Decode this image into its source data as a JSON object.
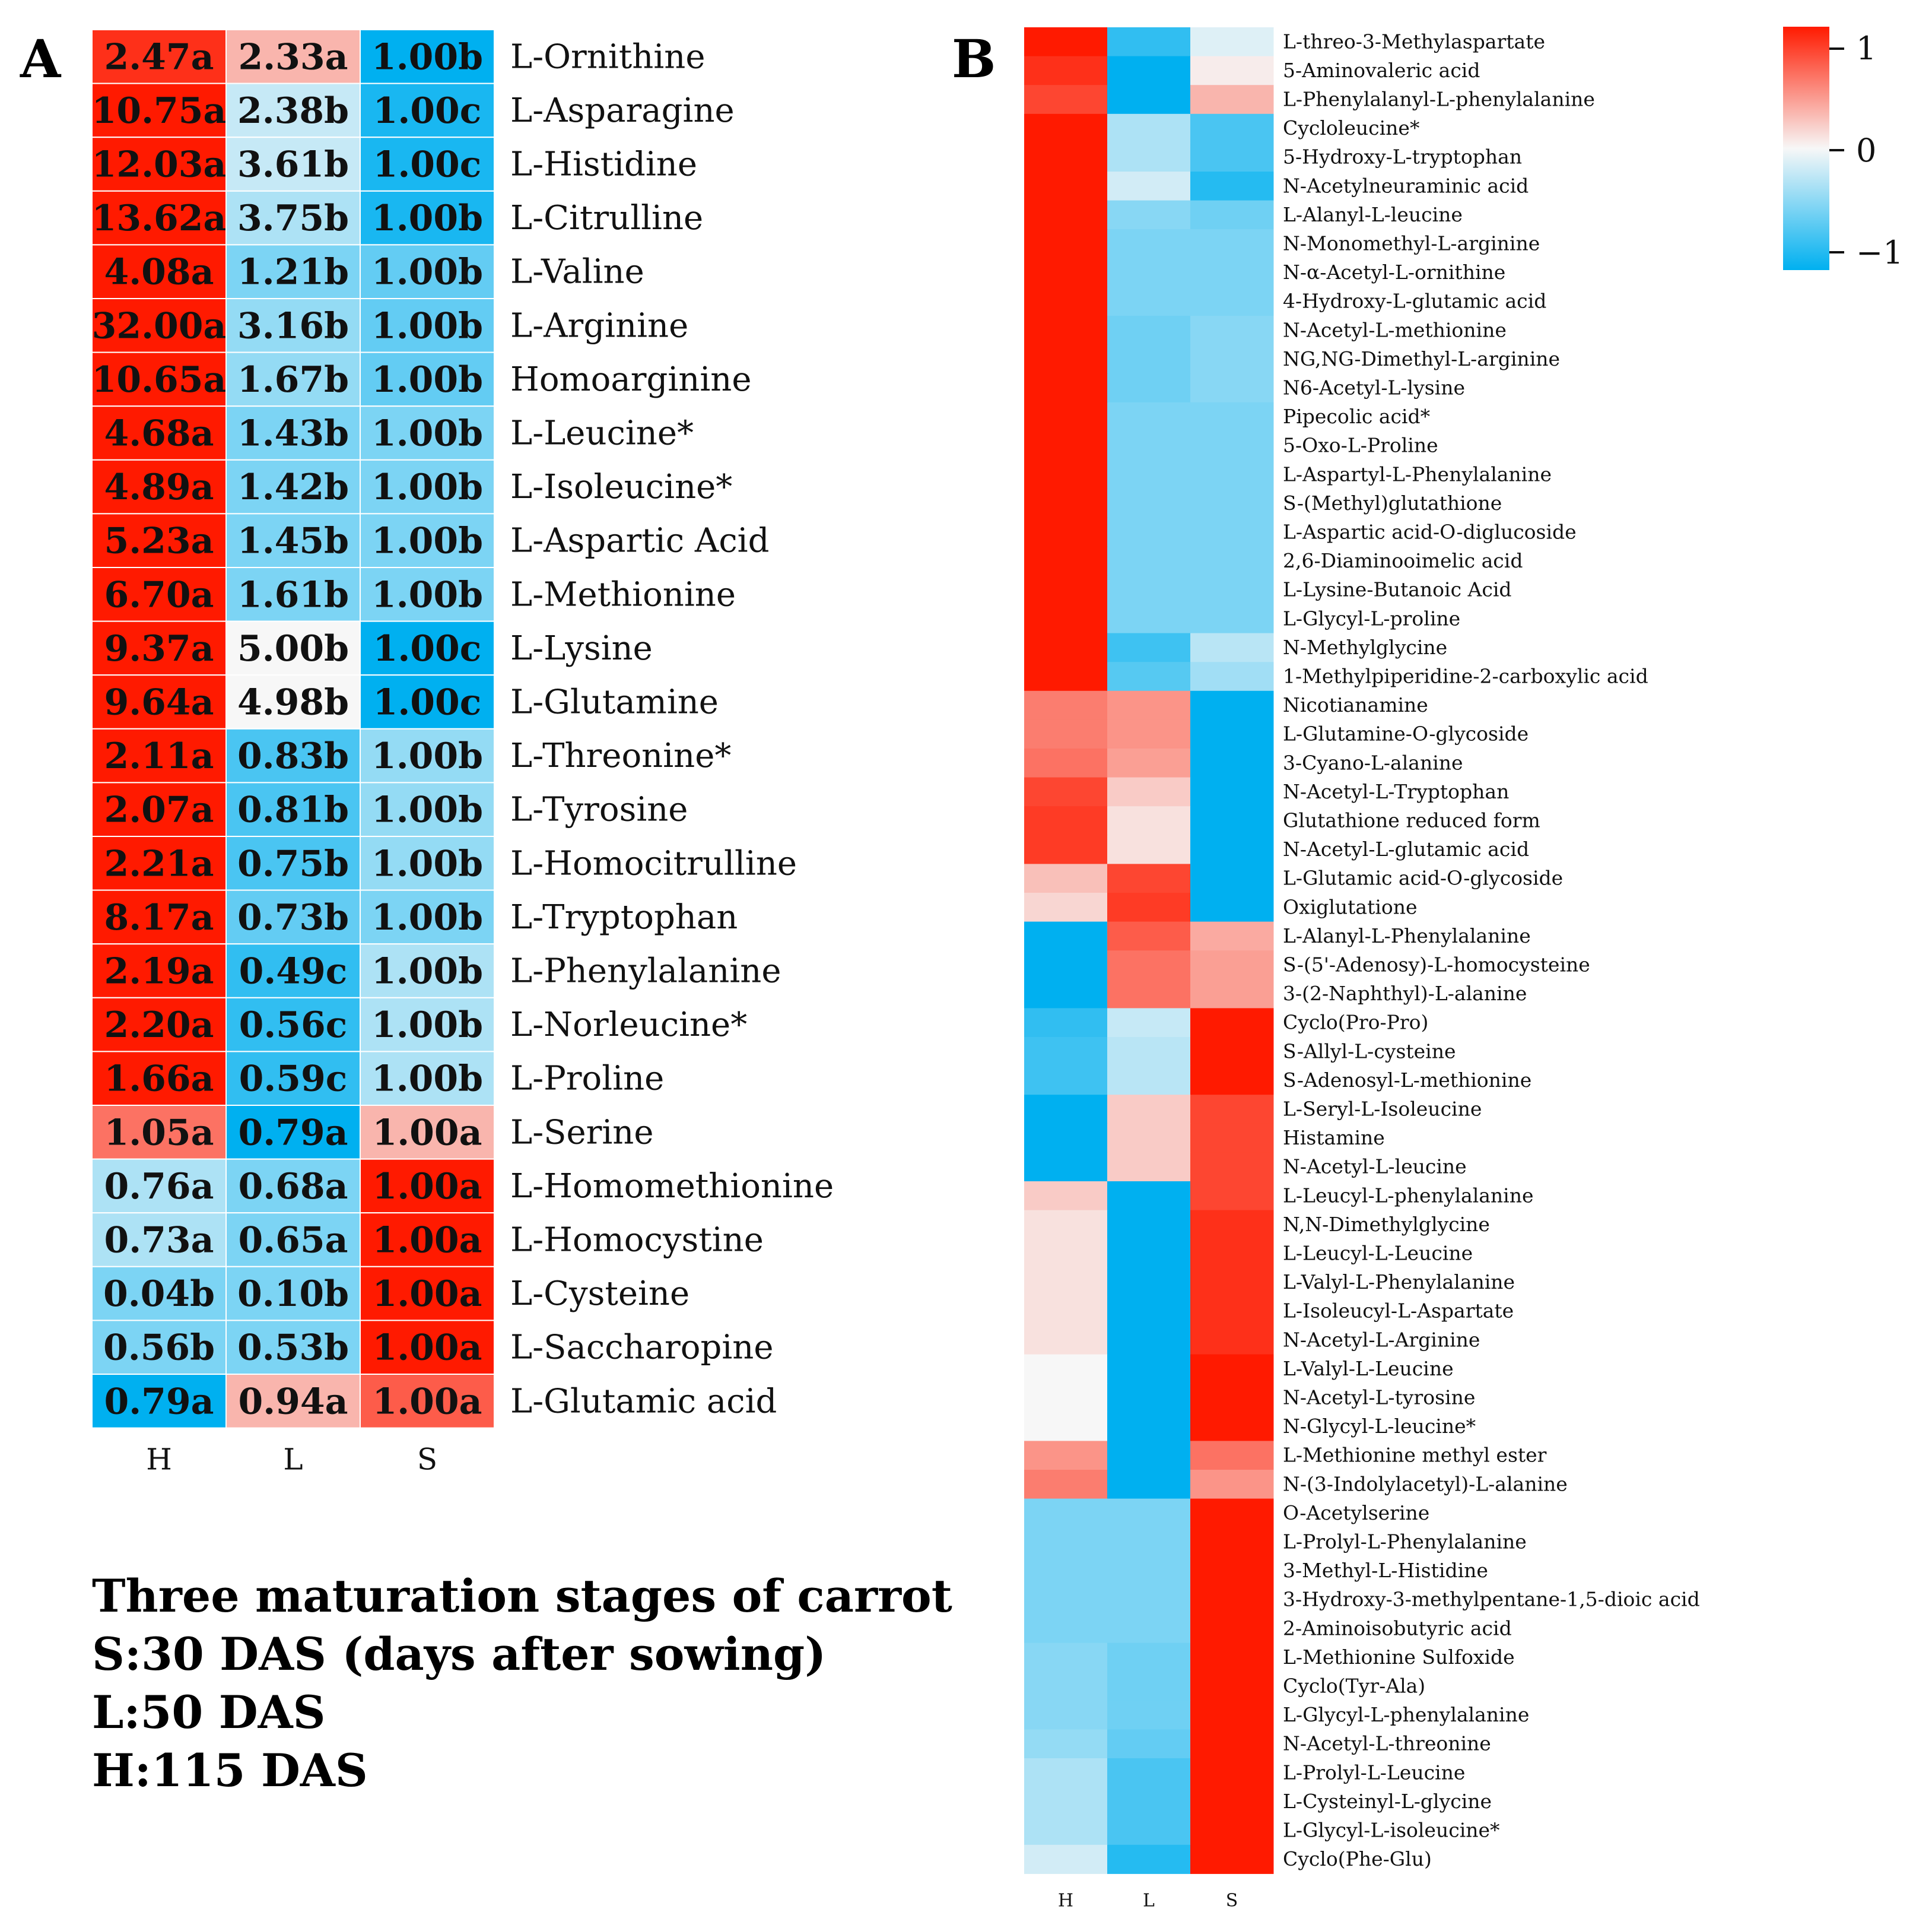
{
  "chart_data": [
    {
      "type": "heatmap",
      "panel": "A",
      "columns": [
        "H",
        "L",
        "S"
      ],
      "rows": [
        {
          "name": "L-Ornithine",
          "values": [
            2.47,
            2.33,
            1.0
          ],
          "labels": [
            "2.47a",
            "2.33a",
            "1.00b"
          ]
        },
        {
          "name": "L-Asparagine",
          "values": [
            10.75,
            2.38,
            1.0
          ],
          "labels": [
            "10.75a",
            "2.38b",
            "1.00c"
          ]
        },
        {
          "name": "L-Histidine",
          "values": [
            12.03,
            3.61,
            1.0
          ],
          "labels": [
            "12.03a",
            "3.61b",
            "1.00c"
          ]
        },
        {
          "name": "L-Citrulline",
          "values": [
            13.62,
            3.75,
            1.0
          ],
          "labels": [
            "13.62a",
            "3.75b",
            "1.00b"
          ]
        },
        {
          "name": "L-Valine",
          "values": [
            4.08,
            1.21,
            1.0
          ],
          "labels": [
            "4.08a",
            "1.21b",
            "1.00b"
          ]
        },
        {
          "name": "L-Arginine",
          "values": [
            32.0,
            3.16,
            1.0
          ],
          "labels": [
            "32.00a",
            "3.16b",
            "1.00b"
          ]
        },
        {
          "name": "Homoarginine",
          "values": [
            10.65,
            1.67,
            1.0
          ],
          "labels": [
            "10.65a",
            "1.67b",
            "1.00b"
          ]
        },
        {
          "name": "L-Leucine*",
          "values": [
            4.68,
            1.43,
            1.0
          ],
          "labels": [
            "4.68a",
            "1.43b",
            "1.00b"
          ]
        },
        {
          "name": "L-Isoleucine*",
          "values": [
            4.89,
            1.42,
            1.0
          ],
          "labels": [
            "4.89a",
            "1.42b",
            "1.00b"
          ]
        },
        {
          "name": "L-Aspartic Acid",
          "values": [
            5.23,
            1.45,
            1.0
          ],
          "labels": [
            "5.23a",
            "1.45b",
            "1.00b"
          ]
        },
        {
          "name": "L-Methionine",
          "values": [
            6.7,
            1.61,
            1.0
          ],
          "labels": [
            "6.70a",
            "1.61b",
            "1.00b"
          ]
        },
        {
          "name": "L-Lysine",
          "values": [
            9.37,
            5.0,
            1.0
          ],
          "labels": [
            "9.37a",
            "5.00b",
            "1.00c"
          ]
        },
        {
          "name": "L-Glutamine",
          "values": [
            9.64,
            4.98,
            1.0
          ],
          "labels": [
            "9.64a",
            "4.98b",
            "1.00c"
          ]
        },
        {
          "name": "L-Threonine*",
          "values": [
            2.11,
            0.83,
            1.0
          ],
          "labels": [
            "2.11a",
            "0.83b",
            "1.00b"
          ]
        },
        {
          "name": "L-Tyrosine",
          "values": [
            2.07,
            0.81,
            1.0
          ],
          "labels": [
            "2.07a",
            "0.81b",
            "1.00b"
          ]
        },
        {
          "name": "L-Homocitrulline",
          "values": [
            2.21,
            0.75,
            1.0
          ],
          "labels": [
            "2.21a",
            "0.75b",
            "1.00b"
          ]
        },
        {
          "name": "L-Tryptophan",
          "values": [
            8.17,
            0.73,
            1.0
          ],
          "labels": [
            "8.17a",
            "0.73b",
            "1.00b"
          ]
        },
        {
          "name": "L-Phenylalanine",
          "values": [
            2.19,
            0.49,
            1.0
          ],
          "labels": [
            "2.19a",
            "0.49c",
            "1.00b"
          ]
        },
        {
          "name": "L-Norleucine*",
          "values": [
            2.2,
            0.56,
            1.0
          ],
          "labels": [
            "2.20a",
            "0.56c",
            "1.00b"
          ]
        },
        {
          "name": "L-Proline",
          "values": [
            1.66,
            0.59,
            1.0
          ],
          "labels": [
            "1.66a",
            "0.59c",
            "1.00b"
          ]
        },
        {
          "name": "L-Serine",
          "values": [
            1.05,
            0.79,
            1.0
          ],
          "labels": [
            "1.05a",
            "0.79a",
            "1.00a"
          ]
        },
        {
          "name": "L-Homomethionine",
          "values": [
            0.76,
            0.68,
            1.0
          ],
          "labels": [
            "0.76a",
            "0.68a",
            "1.00a"
          ]
        },
        {
          "name": "L-Homocystine",
          "values": [
            0.73,
            0.65,
            1.0
          ],
          "labels": [
            "0.73a",
            "0.65a",
            "1.00a"
          ]
        },
        {
          "name": "L-Cysteine",
          "values": [
            0.04,
            0.1,
            1.0
          ],
          "labels": [
            "0.04b",
            "0.10b",
            "1.00a"
          ]
        },
        {
          "name": "L-Saccharopine",
          "values": [
            0.56,
            0.53,
            1.0
          ],
          "labels": [
            "0.56b",
            "0.53b",
            "1.00a"
          ]
        },
        {
          "name": "L-Glutamic acid",
          "values": [
            0.79,
            0.94,
            1.0
          ],
          "labels": [
            "0.79a",
            "0.94a",
            "1.00a"
          ]
        }
      ],
      "shading_zscore": [
        [
          0.9,
          0.3,
          -1.1
        ],
        [
          1.0,
          -0.2,
          -0.9
        ],
        [
          1.0,
          -0.2,
          -0.9
        ],
        [
          1.0,
          -0.3,
          -0.9
        ],
        [
          1.0,
          -0.5,
          -0.6
        ],
        [
          1.0,
          -0.4,
          -0.6
        ],
        [
          1.0,
          -0.4,
          -0.6
        ],
        [
          1.0,
          -0.5,
          -0.5
        ],
        [
          1.0,
          -0.5,
          -0.5
        ],
        [
          1.0,
          -0.5,
          -0.5
        ],
        [
          1.0,
          -0.5,
          -0.5
        ],
        [
          1.0,
          0.0,
          -1.0
        ],
        [
          1.0,
          0.0,
          -1.0
        ],
        [
          1.0,
          -0.7,
          -0.4
        ],
        [
          1.0,
          -0.7,
          -0.4
        ],
        [
          1.0,
          -0.7,
          -0.4
        ],
        [
          1.0,
          -0.6,
          -0.5
        ],
        [
          1.0,
          -0.8,
          -0.3
        ],
        [
          1.0,
          -0.8,
          -0.3
        ],
        [
          1.0,
          -0.8,
          -0.3
        ],
        [
          0.6,
          -1.0,
          0.3
        ],
        [
          -0.3,
          -0.5,
          1.0
        ],
        [
          -0.3,
          -0.5,
          1.0
        ],
        [
          -0.5,
          -0.5,
          1.0
        ],
        [
          -0.5,
          -0.5,
          1.0
        ],
        [
          -1.0,
          0.3,
          0.7
        ]
      ]
    },
    {
      "type": "heatmap",
      "panel": "B",
      "columns": [
        "H",
        "L",
        "S"
      ],
      "color_scale": {
        "min": -1,
        "max": 1,
        "ticks": [
          "1",
          "0",
          "−1"
        ],
        "low_color": "#00b0f0",
        "mid_color": "#f7f7f7",
        "high_color": "#ff1a00"
      },
      "rows": [
        {
          "name": "L-threo-3-Methylaspartate",
          "values": [
            1.0,
            -0.8,
            -0.1
          ]
        },
        {
          "name": "5-Aminovaleric acid",
          "values": [
            0.9,
            -1.0,
            0.05
          ]
        },
        {
          "name": "L-Phenylalanyl-L-phenylalanine",
          "values": [
            0.8,
            -1.0,
            0.3
          ]
        },
        {
          "name": "Cycloleucine*",
          "values": [
            1.0,
            -0.3,
            -0.7
          ]
        },
        {
          "name": "5-Hydroxy-L-tryptophan",
          "values": [
            1.0,
            -0.3,
            -0.7
          ]
        },
        {
          "name": "N-Acetylneuraminic acid",
          "values": [
            1.0,
            -0.15,
            -0.85
          ]
        },
        {
          "name": "L-Alanyl-L-leucine",
          "values": [
            1.0,
            -0.45,
            -0.55
          ]
        },
        {
          "name": "N-Monomethyl-L-arginine",
          "values": [
            1.0,
            -0.5,
            -0.5
          ]
        },
        {
          "name": "N-α-Acetyl-L-ornithine",
          "values": [
            1.0,
            -0.5,
            -0.5
          ]
        },
        {
          "name": "4-Hydroxy-L-glutamic acid",
          "values": [
            1.0,
            -0.5,
            -0.5
          ]
        },
        {
          "name": "N-Acetyl-L-methionine",
          "values": [
            1.0,
            -0.55,
            -0.45
          ]
        },
        {
          "name": "NG,NG-Dimethyl-L-arginine",
          "values": [
            1.0,
            -0.55,
            -0.45
          ]
        },
        {
          "name": "N6-Acetyl-L-lysine",
          "values": [
            1.0,
            -0.55,
            -0.45
          ]
        },
        {
          "name": "Pipecolic acid*",
          "values": [
            1.0,
            -0.5,
            -0.5
          ]
        },
        {
          "name": "5-Oxo-L-Proline",
          "values": [
            1.0,
            -0.5,
            -0.5
          ]
        },
        {
          "name": "L-Aspartyl-L-Phenylalanine",
          "values": [
            1.0,
            -0.5,
            -0.5
          ]
        },
        {
          "name": "S-(Methyl)glutathione",
          "values": [
            1.0,
            -0.5,
            -0.5
          ]
        },
        {
          "name": "L-Aspartic acid-O-diglucoside",
          "values": [
            1.0,
            -0.5,
            -0.5
          ]
        },
        {
          "name": "2,6-Diaminooimelic acid",
          "values": [
            1.0,
            -0.5,
            -0.5
          ]
        },
        {
          "name": "L-Lysine-Butanoic Acid",
          "values": [
            1.0,
            -0.5,
            -0.5
          ]
        },
        {
          "name": "L-Glycyl-L-proline",
          "values": [
            1.0,
            -0.5,
            -0.5
          ]
        },
        {
          "name": "N-Methylglycine",
          "values": [
            1.0,
            -0.75,
            -0.25
          ]
        },
        {
          "name": "1-Methylpiperidine-2-carboxylic acid",
          "values": [
            1.0,
            -0.65,
            -0.35
          ]
        },
        {
          "name": "Nicotianamine",
          "values": [
            0.55,
            0.45,
            -1.0
          ]
        },
        {
          "name": "L-Glutamine-O-glycoside",
          "values": [
            0.55,
            0.45,
            -1.0
          ]
        },
        {
          "name": "3-Cyano-L-alanine",
          "values": [
            0.6,
            0.4,
            -1.0
          ]
        },
        {
          "name": "N-Acetyl-L-Tryptophan",
          "values": [
            0.8,
            0.2,
            -1.0
          ]
        },
        {
          "name": "Glutathione reduced form",
          "values": [
            0.85,
            0.1,
            -1.0
          ]
        },
        {
          "name": "N-Acetyl-L-glutamic acid",
          "values": [
            0.85,
            0.1,
            -1.0
          ]
        },
        {
          "name": "L-Glutamic acid-O-glycoside",
          "values": [
            0.25,
            0.8,
            -1.0
          ]
        },
        {
          "name": "Oxiglutatione",
          "values": [
            0.15,
            0.85,
            -1.0
          ]
        },
        {
          "name": "L-Alanyl-L-Phenylalanine",
          "values": [
            -1.0,
            0.7,
            0.35
          ]
        },
        {
          "name": "S-(5'-Adenosy)-L-homocysteine",
          "values": [
            -1.0,
            0.6,
            0.4
          ]
        },
        {
          "name": "3-(2-Naphthyl)-L-alanine",
          "values": [
            -1.0,
            0.6,
            0.4
          ]
        },
        {
          "name": "Cyclo(Pro-Pro)",
          "values": [
            -0.8,
            -0.2,
            1.0
          ]
        },
        {
          "name": "S-Allyl-L-cysteine",
          "values": [
            -0.75,
            -0.25,
            1.0
          ]
        },
        {
          "name": "S-Adenosyl-L-methionine",
          "values": [
            -0.75,
            -0.25,
            1.0
          ]
        },
        {
          "name": "L-Seryl-L-Isoleucine",
          "values": [
            -1.0,
            0.2,
            0.8
          ]
        },
        {
          "name": "Histamine",
          "values": [
            -1.0,
            0.2,
            0.8
          ]
        },
        {
          "name": "N-Acetyl-L-leucine",
          "values": [
            -1.0,
            0.2,
            0.8
          ]
        },
        {
          "name": "L-Leucyl-L-phenylalanine",
          "values": [
            0.2,
            -1.0,
            0.8
          ]
        },
        {
          "name": "N,N-Dimethylglycine",
          "values": [
            0.1,
            -1.0,
            0.9
          ]
        },
        {
          "name": "L-Leucyl-L-Leucine",
          "values": [
            0.1,
            -1.0,
            0.9
          ]
        },
        {
          "name": "L-Valyl-L-Phenylalanine",
          "values": [
            0.1,
            -1.0,
            0.9
          ]
        },
        {
          "name": "L-Isoleucyl-L-Aspartate",
          "values": [
            0.1,
            -1.0,
            0.9
          ]
        },
        {
          "name": "N-Acetyl-L-Arginine",
          "values": [
            0.1,
            -1.0,
            0.9
          ]
        },
        {
          "name": "L-Valyl-L-Leucine",
          "values": [
            0.0,
            -1.0,
            1.0
          ]
        },
        {
          "name": "N-Acetyl-L-tyrosine",
          "values": [
            0.0,
            -1.0,
            1.0
          ]
        },
        {
          "name": "N-Glycyl-L-leucine*",
          "values": [
            0.0,
            -1.0,
            1.0
          ]
        },
        {
          "name": "L-Methionine methyl ester",
          "values": [
            0.45,
            -1.0,
            0.6
          ]
        },
        {
          "name": "N-(3-Indolylacetyl)-L-alanine",
          "values": [
            0.55,
            -1.0,
            0.45
          ]
        },
        {
          "name": "O-Acetylserine",
          "values": [
            -0.5,
            -0.5,
            1.0
          ]
        },
        {
          "name": "L-Prolyl-L-Phenylalanine",
          "values": [
            -0.5,
            -0.5,
            1.0
          ]
        },
        {
          "name": "3-Methyl-L-Histidine",
          "values": [
            -0.5,
            -0.5,
            1.0
          ]
        },
        {
          "name": "3-Hydroxy-3-methylpentane-1,5-dioic acid",
          "values": [
            -0.5,
            -0.5,
            1.0
          ]
        },
        {
          "name": "2-Aminoisobutyric acid",
          "values": [
            -0.5,
            -0.5,
            1.0
          ]
        },
        {
          "name": "L-Methionine Sulfoxide",
          "values": [
            -0.45,
            -0.55,
            1.0
          ]
        },
        {
          "name": "Cyclo(Tyr-Ala)",
          "values": [
            -0.45,
            -0.55,
            1.0
          ]
        },
        {
          "name": "L-Glycyl-L-phenylalanine",
          "values": [
            -0.45,
            -0.55,
            1.0
          ]
        },
        {
          "name": "N-Acetyl-L-threonine",
          "values": [
            -0.4,
            -0.6,
            1.0
          ]
        },
        {
          "name": "L-Prolyl-L-Leucine",
          "values": [
            -0.3,
            -0.7,
            1.0
          ]
        },
        {
          "name": "L-Cysteinyl-L-glycine",
          "values": [
            -0.3,
            -0.7,
            1.0
          ]
        },
        {
          "name": "L-Glycyl-L-isoleucine*",
          "values": [
            -0.3,
            -0.7,
            1.0
          ]
        },
        {
          "name": "Cyclo(Phe-Glu)",
          "values": [
            -0.15,
            -0.85,
            1.0
          ]
        }
      ]
    }
  ],
  "panel_labels": {
    "a": "A",
    "b": "B"
  },
  "notes": [
    "Three maturation stages of carrot",
    "S:30 DAS (days after sowing)",
    "L:50 DAS",
    "H:115 DAS"
  ]
}
